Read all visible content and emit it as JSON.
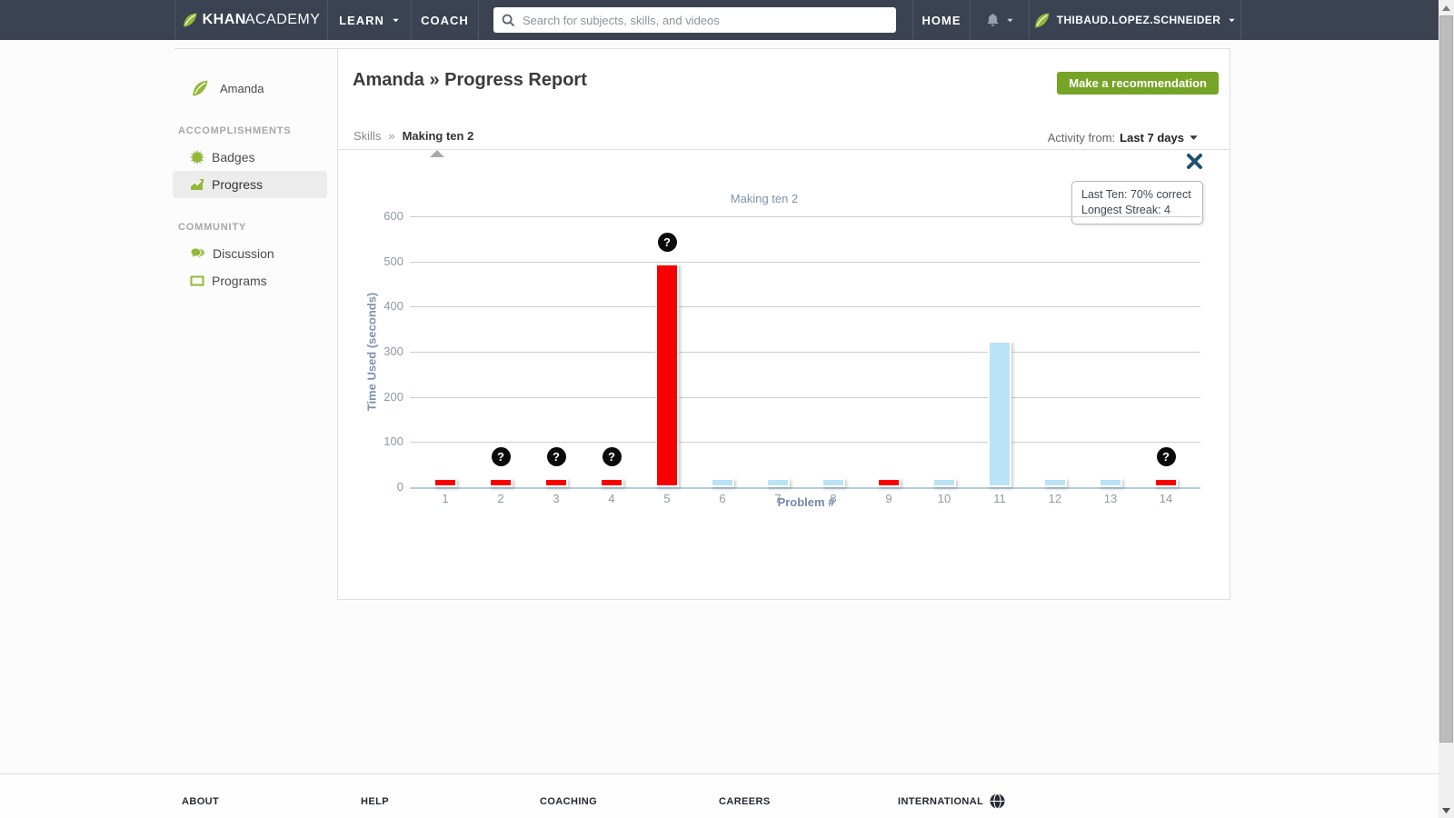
{
  "navbar": {
    "logo_khan": "KHAN",
    "logo_academy": "ACADEMY",
    "learn_label": "LEARN",
    "coach_label": "COACH",
    "search_placeholder": "Search for subjects, skills, and videos",
    "home_label": "HOME",
    "user_name": "THIBAUD.LOPEZ.SCHNEIDER"
  },
  "sidebar": {
    "student_name": "Amanda",
    "sections": [
      {
        "header": "ACCOMPLISHMENTS",
        "items": [
          {
            "label": "Badges",
            "icon": "badge-icon",
            "active": false
          },
          {
            "label": "Progress",
            "icon": "progress-chart-icon",
            "active": true
          }
        ]
      },
      {
        "header": "COMMUNITY",
        "items": [
          {
            "label": "Discussion",
            "icon": "discussion-icon",
            "active": false
          },
          {
            "label": "Programs",
            "icon": "programs-icon",
            "active": false
          }
        ]
      }
    ]
  },
  "main": {
    "title": "Amanda » Progress Report",
    "recommend_button": "Make a recommendation",
    "breadcrumb": {
      "root": "Skills",
      "separator": "»",
      "current": "Making ten 2"
    },
    "activity_filter": {
      "label": "Activity from:",
      "value": "Last 7 days"
    }
  },
  "tooltip": {
    "line1": "Last Ten: 70% correct",
    "line2": "Longest Streak: 4"
  },
  "chart_data": {
    "type": "bar",
    "title": "Making ten 2",
    "xlabel": "Problem #",
    "ylabel": "Time Used (seconds)",
    "ylim": [
      0,
      600
    ],
    "yticks": [
      0,
      100,
      200,
      300,
      400,
      500,
      600
    ],
    "grid": true,
    "legend_position": "none",
    "categories": [
      1,
      2,
      3,
      4,
      5,
      6,
      7,
      8,
      9,
      10,
      11,
      12,
      13,
      14
    ],
    "values": [
      20,
      20,
      20,
      20,
      495,
      20,
      20,
      20,
      20,
      20,
      325,
      20,
      20,
      20
    ],
    "status": [
      "incorrect",
      "incorrect",
      "incorrect",
      "incorrect",
      "incorrect",
      "correct",
      "correct",
      "correct",
      "incorrect",
      "correct",
      "correct",
      "correct",
      "correct",
      "incorrect"
    ],
    "question_mark_problems": [
      2,
      3,
      4,
      5,
      14
    ],
    "bar_colors": {
      "incorrect": "#f80000",
      "correct": "#b9e3f6"
    }
  },
  "footer": {
    "links": [
      "ABOUT",
      "HELP",
      "COACHING",
      "CAREERS",
      "INTERNATIONAL"
    ]
  },
  "ui_colors": {
    "navbar_bg": "#3b4251",
    "brand_green": "#93b939",
    "button_green": "#76a427",
    "close_icon_blue": "#1e506f"
  }
}
